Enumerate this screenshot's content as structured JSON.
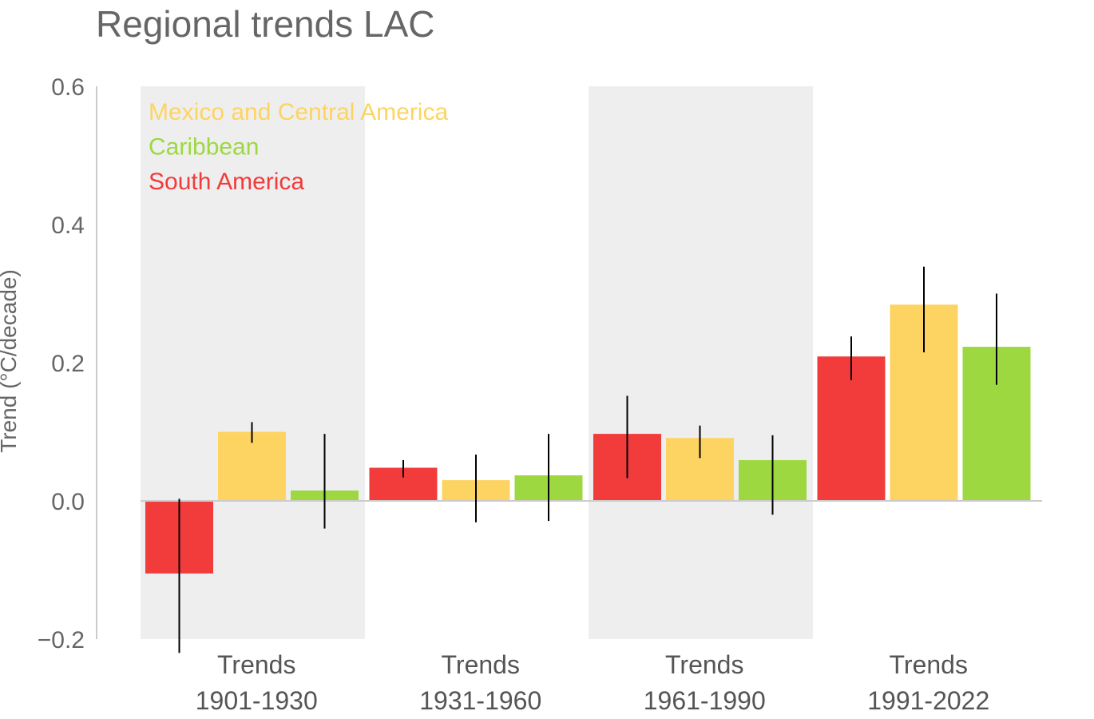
{
  "chart_data": {
    "type": "bar",
    "title": "Regional trends LAC",
    "ylabel": "Trend (°C/decade)",
    "xlabel": "",
    "ylim": [
      -0.2,
      0.6
    ],
    "yticks": [
      {
        "value": -0.2,
        "label": "−0.2"
      },
      {
        "value": 0.0,
        "label": "0.0"
      },
      {
        "value": 0.2,
        "label": "0.2"
      },
      {
        "value": 0.4,
        "label": "0.4"
      },
      {
        "value": 0.6,
        "label": "0.6"
      }
    ],
    "categories": [
      {
        "line1": "Trends",
        "line2": "1901-1930",
        "shaded": true
      },
      {
        "line1": "Trends",
        "line2": "1931-1960",
        "shaded": false
      },
      {
        "line1": "Trends",
        "line2": "1961-1990",
        "shaded": true
      },
      {
        "line1": "Trends",
        "line2": "1991-2022",
        "shaded": false
      }
    ],
    "series": [
      {
        "name": "South America",
        "color": "#f23b3b",
        "values": [
          -0.105,
          0.048,
          0.097,
          0.209
        ],
        "err_low": [
          -0.22,
          0.034,
          0.033,
          0.175
        ],
        "err_high": [
          0.003,
          0.059,
          0.152,
          0.238
        ]
      },
      {
        "name": "Mexico and Central America",
        "color": "#fdd462",
        "values": [
          0.1,
          0.03,
          0.091,
          0.284
        ],
        "err_low": [
          0.084,
          -0.031,
          0.062,
          0.215
        ],
        "err_high": [
          0.114,
          0.067,
          0.109,
          0.339
        ]
      },
      {
        "name": "Caribbean",
        "color": "#9dd840",
        "values": [
          0.015,
          0.037,
          0.059,
          0.223
        ],
        "err_low": [
          -0.04,
          -0.029,
          -0.02,
          0.168
        ],
        "err_high": [
          0.097,
          0.097,
          0.095,
          0.3
        ]
      }
    ],
    "legend": {
      "placement": "top-left",
      "entries": [
        {
          "label": "Mexico and Central America",
          "color": "#fdd462"
        },
        {
          "label": "Caribbean",
          "color": "#9dd840"
        },
        {
          "label": "South America",
          "color": "#f23b3b"
        }
      ]
    },
    "grid": false
  }
}
